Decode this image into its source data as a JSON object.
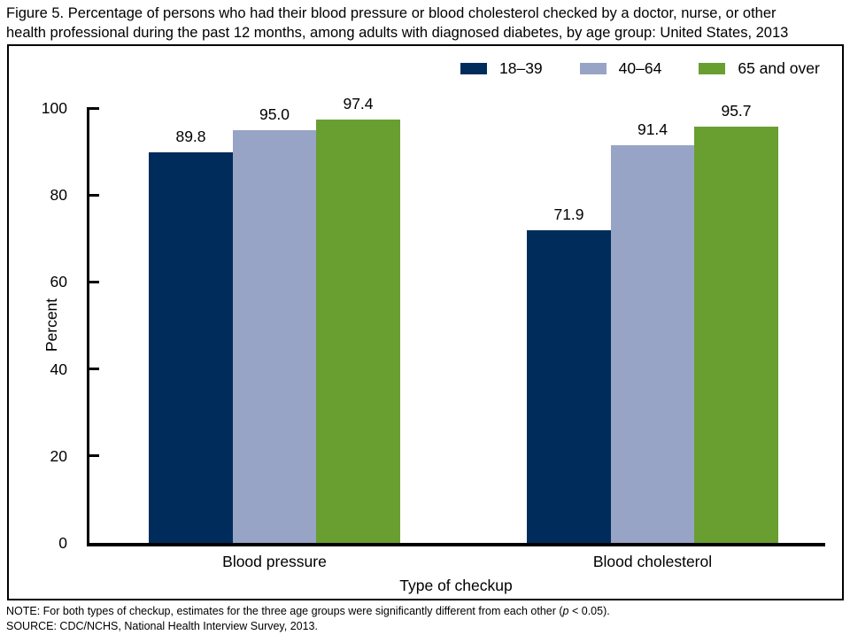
{
  "title": {
    "line1": "Figure 5. Percentage of persons who had their blood pressure or blood cholesterol checked by a doctor, nurse, or other",
    "line2": "health professional during the past 12 months, among adults with diagnosed diabetes, by age group: United States, 2013"
  },
  "chart_data": {
    "type": "bar",
    "title": "Figure 5. Percentage of persons who had their blood pressure or blood cholesterol checked by a doctor, nurse, or other health professional during the past 12 months, among adults with diagnosed diabetes, by age group: United States, 2013",
    "categories": [
      "Blood pressure",
      "Blood cholesterol"
    ],
    "series": [
      {
        "name": "18–39",
        "color": "#002c5c",
        "values": [
          89.8,
          71.9
        ]
      },
      {
        "name": "40–64",
        "color": "#98a4c6",
        "values": [
          95.0,
          91.4
        ]
      },
      {
        "name": "65 and over",
        "color": "#699e31",
        "values": [
          97.4,
          95.7
        ]
      }
    ],
    "xlabel": "Type of checkup",
    "ylabel": "Percent",
    "ylim": [
      0,
      100
    ],
    "yticks": [
      0,
      20,
      40,
      60,
      80,
      100
    ],
    "grid": false,
    "legend_position": "top-right",
    "value_labels": true,
    "value_label_format": "0.1f"
  },
  "footer": {
    "note_prefix": "NOTE: For both types of checkup, estimates for the three age groups were significantly different from each other (",
    "note_p": "p",
    "note_suffix": " < 0.05).",
    "source": "SOURCE: CDC/NCHS, National Health Interview Survey, 2013."
  }
}
